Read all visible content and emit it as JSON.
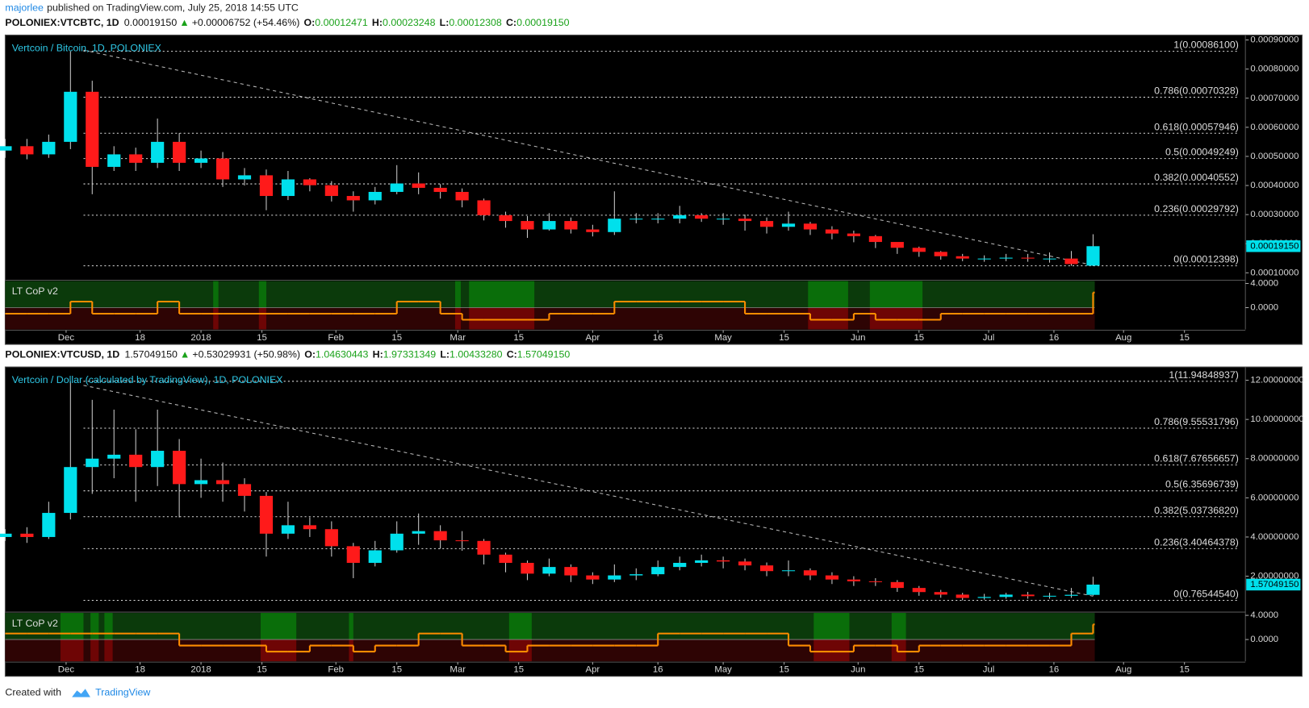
{
  "header": {
    "author": "majorlee",
    "published": "published on TradingView.com, July 25, 2018 14:55 UTC"
  },
  "footer": {
    "created": "Created with",
    "brand": "TradingView"
  },
  "chart_data": [
    {
      "type": "candlestick",
      "quote": {
        "symbol": "POLONIEX:VTCBTC, 1D",
        "price": "0.00019150",
        "arrow": "▲",
        "change": "+0.00006752 (+54.46%)",
        "ohlc": [
          {
            "key": "O:",
            "value": "0.00012471"
          },
          {
            "key": "H:",
            "value": "0.00023248"
          },
          {
            "key": "L:",
            "value": "0.00012308"
          },
          {
            "key": "C:",
            "value": "0.00019150"
          }
        ]
      },
      "title": "Vertcoin / Bitcoin, 1D, POLONIEX",
      "up_color": "#00e0ec",
      "down_color": "#ff1a1a",
      "x": [
        0,
        5,
        10,
        15,
        20,
        25,
        30,
        35,
        40,
        45,
        50,
        55,
        60,
        65,
        70,
        75,
        80,
        85,
        90,
        95,
        100,
        105,
        110,
        115,
        120,
        125,
        130,
        135,
        140,
        145,
        150,
        155,
        160,
        165,
        170,
        175,
        180,
        185,
        190,
        195,
        200,
        205,
        210,
        215,
        220,
        225,
        230,
        235,
        240,
        245,
        250
      ],
      "open": [
        0.00052,
        0.000535,
        0.000507,
        0.00055,
        0.000722,
        0.000464,
        0.000507,
        0.000478,
        0.00055,
        0.000478,
        0.000493,
        0.000421,
        0.000435,
        0.000364,
        0.000421,
        0.000401,
        0.000364,
        0.000349,
        0.000378,
        0.000407,
        0.000392,
        0.000378,
        0.000349,
        0.000298,
        0.000278,
        0.000249,
        0.000278,
        0.000249,
        0.00024,
        0.000286,
        0.000286,
        0.000286,
        0.000298,
        0.000286,
        0.000286,
        0.000278,
        0.000258,
        0.000269,
        0.000249,
        0.000235,
        0.000226,
        0.000206,
        0.000186,
        0.000172,
        0.000157,
        0.000149,
        0.000149,
        0.000152,
        0.000149,
        0.000149,
        0.00012471
      ],
      "high": [
        0.00056,
        0.00056,
        0.000575,
        0.000861,
        0.00076,
        0.000535,
        0.00053,
        0.00063,
        0.00058,
        0.00052,
        0.000515,
        0.00046,
        0.000455,
        0.00045,
        0.000425,
        0.000415,
        0.00038,
        0.000395,
        0.00047,
        0.000445,
        0.000405,
        0.00039,
        0.000355,
        0.00031,
        0.000295,
        0.000305,
        0.00029,
        0.000265,
        0.00038,
        0.000305,
        0.000305,
        0.00033,
        0.000305,
        0.000305,
        0.0003,
        0.00029,
        0.00031,
        0.000275,
        0.00026,
        0.000245,
        0.00023,
        0.000205,
        0.00019,
        0.000175,
        0.000165,
        0.00016,
        0.000165,
        0.000165,
        0.00017,
        0.000175,
        0.00023248
      ],
      "low": [
        0.000495,
        0.00049,
        0.000495,
        0.000525,
        0.00037,
        0.00045,
        0.00045,
        0.00046,
        0.00045,
        0.00046,
        0.000395,
        0.0004,
        0.000315,
        0.00035,
        0.00038,
        0.000345,
        0.00031,
        0.000335,
        0.00037,
        0.00037,
        0.000355,
        0.000325,
        0.00028,
        0.000255,
        0.00022,
        0.000245,
        0.000235,
        0.000225,
        0.00023,
        0.00027,
        0.00027,
        0.00027,
        0.000275,
        0.000265,
        0.000245,
        0.000235,
        0.000245,
        0.00023,
        0.000215,
        0.000205,
        0.000185,
        0.000165,
        0.000155,
        0.000145,
        0.00014,
        0.000138,
        0.00014,
        0.000138,
        0.000135,
        0.000124,
        0.00012308
      ],
      "close": [
        0.000535,
        0.000507,
        0.00055,
        0.000722,
        0.000464,
        0.000507,
        0.000478,
        0.00055,
        0.000478,
        0.000493,
        0.000421,
        0.000435,
        0.000364,
        0.000421,
        0.000401,
        0.000364,
        0.000349,
        0.000378,
        0.000407,
        0.000392,
        0.000378,
        0.000349,
        0.000298,
        0.000278,
        0.000249,
        0.000278,
        0.000249,
        0.00024,
        0.000286,
        0.000286,
        0.000286,
        0.000298,
        0.000286,
        0.000286,
        0.000278,
        0.000258,
        0.000269,
        0.000249,
        0.000235,
        0.000226,
        0.000206,
        0.000186,
        0.000172,
        0.000157,
        0.000149,
        0.000149,
        0.000152,
        0.000149,
        0.000149,
        0.00013,
        0.0001915
      ],
      "xlim": [
        0,
        285
      ],
      "xticks": [
        {
          "value": 14,
          "label": "Dec"
        },
        {
          "value": 31,
          "label": "18"
        },
        {
          "value": 45,
          "label": "2018"
        },
        {
          "value": 59,
          "label": "15"
        },
        {
          "value": 76,
          "label": "Feb"
        },
        {
          "value": 90,
          "label": "15"
        },
        {
          "value": 104,
          "label": "Mar"
        },
        {
          "value": 118,
          "label": "15"
        },
        {
          "value": 135,
          "label": "Apr"
        },
        {
          "value": 150,
          "label": "16"
        },
        {
          "value": 165,
          "label": "May"
        },
        {
          "value": 179,
          "label": "15"
        },
        {
          "value": 196,
          "label": "Jun"
        },
        {
          "value": 210,
          "label": "15"
        },
        {
          "value": 226,
          "label": "Jul"
        },
        {
          "value": 241,
          "label": "16"
        },
        {
          "value": 257,
          "label": "Aug"
        },
        {
          "value": 271,
          "label": "15"
        }
      ],
      "ylim": [
        7.75e-05,
        0.000917
      ],
      "yticks": [
        {
          "value": 0.0001,
          "label": "0.00010000"
        },
        {
          "value": 0.0002,
          "label": "0.00020000"
        },
        {
          "value": 0.0003,
          "label": "0.00030000"
        },
        {
          "value": 0.0004,
          "label": "0.00040000"
        },
        {
          "value": 0.0005,
          "label": "0.00050000"
        },
        {
          "value": 0.0006,
          "label": "0.00060000"
        },
        {
          "value": 0.0007,
          "label": "0.00070000"
        },
        {
          "value": 0.0008,
          "label": "0.00080000"
        },
        {
          "value": 0.0009,
          "label": "0.00090000"
        }
      ],
      "fib": [
        {
          "value": 0.000861,
          "label": "1(0.00086100)"
        },
        {
          "value": 0.00070328,
          "label": "0.786(0.00070328)"
        },
        {
          "value": 0.00057946,
          "label": "0.618(0.00057946)"
        },
        {
          "value": 0.00049249,
          "label": "0.5(0.00049249)"
        },
        {
          "value": 0.00040552,
          "label": "0.382(0.00040552)"
        },
        {
          "value": 0.00029792,
          "label": "0.236(0.00029792)"
        },
        {
          "value": 0.00012398,
          "label": "0(0.00012398)"
        }
      ],
      "trendline": {
        "x": [
          18,
          250
        ],
        "y": [
          0.000865,
          0.000126
        ]
      },
      "last_price": {
        "value": 0.0001915,
        "label": "0.00019150"
      },
      "indicator": {
        "title": "LT CoP v2",
        "line_color": "#ff8c00",
        "bull_color": "#0b3a0b",
        "bear_color": "#2e0404",
        "highlight_bull": "#0a6e0a",
        "highlight_bear": "#6e0505",
        "ylim": [
          -3.6,
          4.4
        ],
        "yticks": [
          {
            "value": 4,
            "label": "4.0000"
          },
          {
            "value": 0,
            "label": "0.0000"
          }
        ],
        "values": [
          -1,
          -1,
          -1,
          1,
          -1,
          -1,
          -1,
          1,
          -1,
          -1,
          -1,
          -1,
          -1,
          -1,
          -1,
          -1,
          -1,
          -1,
          1,
          1,
          -1,
          -2,
          -2,
          -2,
          -2,
          -1,
          -1,
          -1,
          1,
          1,
          1,
          1,
          1,
          1,
          -1,
          -1,
          -1,
          -2,
          -2,
          -1,
          -2,
          -2,
          -2,
          -1,
          -1,
          -1,
          -1,
          -1,
          -1,
          -1,
          2.5
        ],
        "highlight": [
          [
            47.8,
            49
          ],
          [
            58.3,
            60
          ],
          [
            103.4,
            104.7
          ],
          [
            106.6,
            121.6
          ],
          [
            184.5,
            193.7
          ],
          [
            198.7,
            210.8
          ]
        ]
      }
    },
    {
      "type": "candlestick",
      "quote": {
        "symbol": "POLONIEX:VTCUSD, 1D",
        "price": "1.57049150",
        "arrow": "▲",
        "change": "+0.53029931 (+50.98%)",
        "ohlc": [
          {
            "key": "O:",
            "value": "1.04630443"
          },
          {
            "key": "H:",
            "value": "1.97331349"
          },
          {
            "key": "L:",
            "value": "1.00433280"
          },
          {
            "key": "C:",
            "value": "1.57049150"
          }
        ]
      },
      "title": "Vertcoin / Dollar (calculated by TradingView), 1D, POLONIEX",
      "up_color": "#00e0ec",
      "down_color": "#ff1a1a",
      "x": [
        0,
        5,
        10,
        15,
        20,
        25,
        30,
        35,
        40,
        45,
        50,
        55,
        60,
        65,
        70,
        75,
        80,
        85,
        90,
        95,
        100,
        105,
        110,
        115,
        120,
        125,
        130,
        135,
        140,
        145,
        150,
        155,
        160,
        165,
        170,
        175,
        180,
        185,
        190,
        195,
        200,
        205,
        210,
        215,
        220,
        225,
        230,
        235,
        240,
        245,
        250
      ],
      "open": [
        4.0,
        4.17,
        4.0,
        5.23,
        7.57,
        8.0,
        8.2,
        7.57,
        8.4,
        6.7,
        6.9,
        6.7,
        6.1,
        4.17,
        4.6,
        4.4,
        3.53,
        2.68,
        3.32,
        4.17,
        4.3,
        3.83,
        3.8,
        3.1,
        2.68,
        2.13,
        2.47,
        2.04,
        1.83,
        2.04,
        2.1,
        2.47,
        2.68,
        2.81,
        2.75,
        2.55,
        2.26,
        2.3,
        2.04,
        1.83,
        1.74,
        1.7,
        1.4,
        1.19,
        1.06,
        0.89,
        0.94,
        1.06,
        0.98,
        1.0,
        1.04630443
      ],
      "high": [
        4.4,
        4.5,
        5.8,
        11.95,
        11.0,
        10.5,
        9.5,
        10.5,
        9.0,
        8.0,
        7.8,
        7.0,
        6.3,
        5.8,
        5.0,
        4.8,
        3.7,
        3.8,
        4.8,
        5.2,
        4.6,
        4.3,
        3.9,
        3.2,
        2.8,
        2.9,
        2.6,
        2.2,
        2.6,
        2.4,
        2.8,
        3.0,
        3.1,
        3.0,
        2.9,
        2.7,
        2.8,
        2.4,
        2.2,
        2.0,
        1.9,
        1.8,
        1.5,
        1.3,
        1.15,
        1.1,
        1.15,
        1.2,
        1.15,
        1.4,
        1.97331349
      ],
      "low": [
        3.8,
        3.7,
        3.9,
        4.9,
        6.2,
        7.0,
        5.8,
        6.6,
        5.0,
        6.0,
        5.8,
        5.3,
        3.0,
        3.9,
        4.0,
        3.0,
        1.9,
        2.5,
        3.2,
        3.6,
        3.4,
        3.3,
        2.6,
        2.2,
        1.8,
        2.0,
        1.7,
        1.6,
        1.7,
        1.8,
        2.0,
        2.3,
        2.5,
        2.4,
        2.3,
        2.0,
        2.0,
        1.8,
        1.6,
        1.5,
        1.5,
        1.2,
        1.0,
        0.9,
        0.77,
        0.8,
        0.85,
        0.85,
        0.85,
        0.9,
        1.0043328
      ],
      "close": [
        4.17,
        4.0,
        5.23,
        7.57,
        8.0,
        8.2,
        7.57,
        8.4,
        6.7,
        6.9,
        6.7,
        6.1,
        4.17,
        4.6,
        4.4,
        3.53,
        2.68,
        3.32,
        4.17,
        4.3,
        3.83,
        3.8,
        3.1,
        2.68,
        2.13,
        2.47,
        2.04,
        1.83,
        2.04,
        2.1,
        2.47,
        2.68,
        2.81,
        2.75,
        2.55,
        2.26,
        2.3,
        2.04,
        1.83,
        1.74,
        1.7,
        1.4,
        1.19,
        1.06,
        0.89,
        0.94,
        1.06,
        0.98,
        1.0,
        1.05,
        1.5704915
      ],
      "xlim": [
        0,
        285
      ],
      "xticks": [
        {
          "value": 14,
          "label": "Dec"
        },
        {
          "value": 31,
          "label": "18"
        },
        {
          "value": 45,
          "label": "2018"
        },
        {
          "value": 59,
          "label": "15"
        },
        {
          "value": 76,
          "label": "Feb"
        },
        {
          "value": 90,
          "label": "15"
        },
        {
          "value": 104,
          "label": "Mar"
        },
        {
          "value": 118,
          "label": "15"
        },
        {
          "value": 135,
          "label": "Apr"
        },
        {
          "value": 150,
          "label": "16"
        },
        {
          "value": 165,
          "label": "May"
        },
        {
          "value": 179,
          "label": "15"
        },
        {
          "value": 196,
          "label": "Jun"
        },
        {
          "value": 210,
          "label": "15"
        },
        {
          "value": 226,
          "label": "Jul"
        },
        {
          "value": 241,
          "label": "16"
        },
        {
          "value": 257,
          "label": "Aug"
        },
        {
          "value": 271,
          "label": "15"
        }
      ],
      "ylim": [
        0.21,
        12.68
      ],
      "yticks": [
        {
          "value": 2,
          "label": "2.00000000"
        },
        {
          "value": 4,
          "label": "4.00000000"
        },
        {
          "value": 6,
          "label": "6.00000000"
        },
        {
          "value": 8,
          "label": "8.00000000"
        },
        {
          "value": 10,
          "label": "10.00000000"
        },
        {
          "value": 12,
          "label": "12.00000000"
        }
      ],
      "fib": [
        {
          "value": 11.94848937,
          "label": "1(11.94848937)"
        },
        {
          "value": 9.55531796,
          "label": "0.786(9.55531796)"
        },
        {
          "value": 7.67656657,
          "label": "0.618(7.67656657)"
        },
        {
          "value": 6.35696739,
          "label": "0.5(6.35696739)"
        },
        {
          "value": 5.0373682,
          "label": "0.382(5.03736820)"
        },
        {
          "value": 3.40464378,
          "label": "0.236(3.40464378)"
        },
        {
          "value": 0.7654454,
          "label": "0(0.76544540)"
        }
      ],
      "trendline": {
        "x": [
          18,
          250
        ],
        "y": [
          11.74,
          0.98
        ]
      },
      "last_price": {
        "value": 1.5704915,
        "label": "1.57049150"
      },
      "indicator": {
        "title": "LT CoP v2",
        "line_color": "#ff8c00",
        "bull_color": "#0b3a0b",
        "bear_color": "#2e0404",
        "highlight_bull": "#0a6e0a",
        "highlight_bear": "#6e0505",
        "ylim": [
          -3.6,
          4.4
        ],
        "yticks": [
          {
            "value": 4,
            "label": "4.0000"
          },
          {
            "value": 0,
            "label": "0.0000"
          }
        ],
        "values": [
          1,
          1,
          1,
          1,
          1,
          1,
          1,
          1,
          -1,
          -1,
          -1,
          -1,
          -2,
          -2,
          -1,
          -1,
          -2,
          -1,
          -1,
          1,
          1,
          -1,
          -1,
          -2,
          -1,
          -1,
          -1,
          -1,
          -1,
          -1,
          1,
          1,
          1,
          1,
          1,
          1,
          -1,
          -2,
          -2,
          -1,
          -1,
          -2,
          -1,
          -1,
          -1,
          -1,
          -1,
          -1,
          -1,
          1,
          2.5
        ],
        "highlight": [
          [
            12.7,
            18
          ],
          [
            19.6,
            21.5
          ],
          [
            22.8,
            24.7
          ],
          [
            58.7,
            66.9
          ],
          [
            79,
            80
          ],
          [
            115.8,
            121
          ],
          [
            185.8,
            194
          ],
          [
            203.7,
            207
          ]
        ]
      }
    }
  ]
}
